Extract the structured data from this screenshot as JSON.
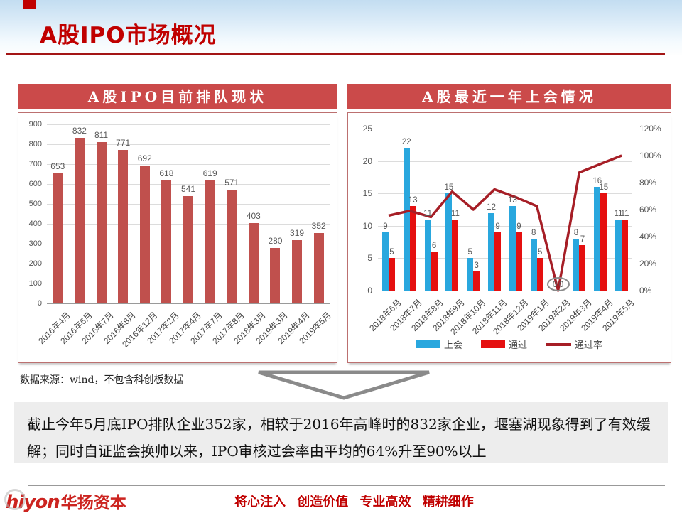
{
  "slide": {
    "title": "A股IPO市场概况",
    "source_note": "数据来源：wind，不包含科创板数据",
    "summary_text": "截止今年5月底IPO排队企业352家，相较于2016年高峰时的832家企业，堰塞湖现象得到了有效缓解；同时自证监会换帅以来，IPO审核过会率由平均的64%升至90%以上",
    "footer": {
      "logo_en": "hiyon",
      "logo_cn": "华扬资本",
      "slogan": "将心注入 创造价值 专业高效 精耕细作"
    }
  },
  "colors": {
    "accent_red": "#c00000",
    "panel_title_bg": "#cb4a4a",
    "queue_bar": "#c0504d",
    "meeting_bar": "#29a7de",
    "pass_bar": "#e51010",
    "pass_rate_line": "#a61e26"
  },
  "chart_data": [
    {
      "type": "bar",
      "title": "A股IPO目前排队现状",
      "categories": [
        "2016年4月",
        "2016年6月",
        "2016年7月",
        "2016年8月",
        "2016年12月",
        "2017年2月",
        "2017年4月",
        "2017年7月",
        "2017年8月",
        "2018年3月",
        "2019年3月",
        "2019年4月",
        "2019年5月"
      ],
      "values": [
        653,
        832,
        811,
        771,
        692,
        618,
        541,
        619,
        571,
        403,
        280,
        319,
        352
      ],
      "xlabel": "",
      "ylabel": "",
      "ylim": [
        0,
        900
      ],
      "ytick_step": 100,
      "grid": true,
      "legend_position": "none",
      "bar_color": "#c0504d"
    },
    {
      "type": "combo",
      "title": "A股最近一年上会情况",
      "categories": [
        "2018年6月",
        "2018年7月",
        "2018年8月",
        "2018年9月",
        "2018年10月",
        "2018年11月",
        "2018年12月",
        "2019年1月",
        "2019年2月",
        "2019年3月",
        "2019年4月",
        "2019年5月"
      ],
      "series": [
        {
          "name": "上会",
          "type": "bar",
          "color": "#29a7de",
          "axis": "left",
          "values": [
            9,
            22,
            11,
            15,
            5,
            12,
            13,
            8,
            0,
            8,
            16,
            11
          ]
        },
        {
          "name": "通过",
          "type": "bar",
          "color": "#e51010",
          "axis": "left",
          "values": [
            5,
            13,
            6,
            11,
            3,
            9,
            9,
            5,
            0,
            7,
            15,
            11
          ]
        },
        {
          "name": "通过率",
          "type": "line",
          "color": "#a61e26",
          "axis": "right",
          "values_pct": [
            55.6,
            59.1,
            54.5,
            73.3,
            60.0,
            75.0,
            69.2,
            62.5,
            0.0,
            87.5,
            93.8,
            100.0
          ]
        }
      ],
      "left_axis": {
        "min": 0,
        "max": 25,
        "step": 5
      },
      "right_axis": {
        "min": 0,
        "max": 120,
        "step": 20,
        "suffix": "%"
      },
      "grid": true,
      "legend_position": "bottom",
      "zero_month_annotation": "2019年2月"
    }
  ]
}
